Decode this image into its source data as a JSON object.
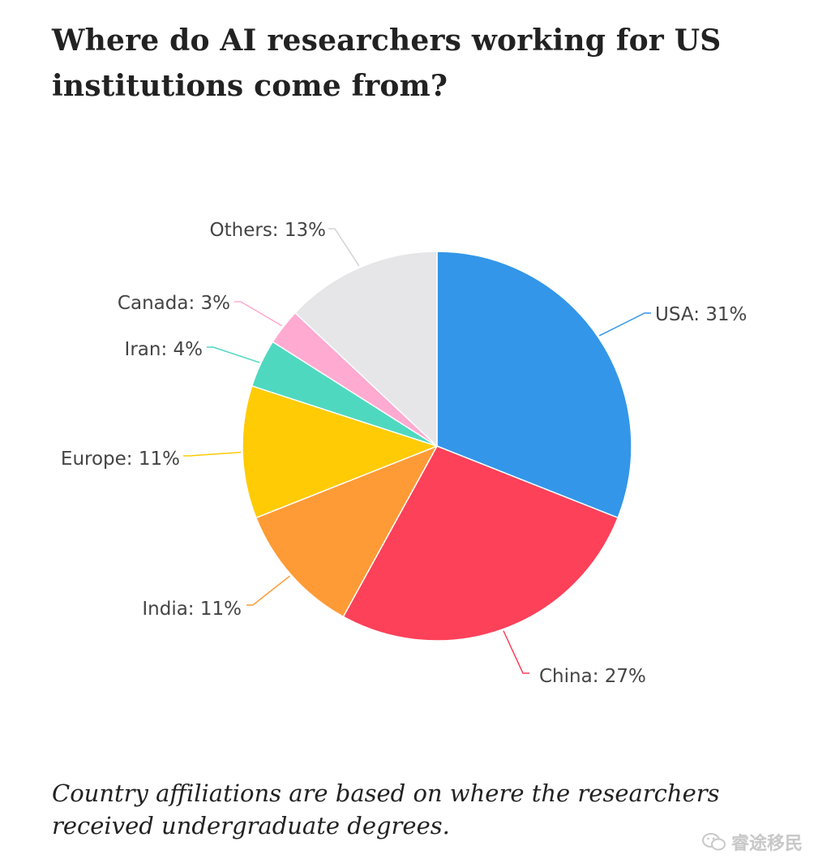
{
  "title": "Where do AI researchers working for US institutions come from?",
  "caption": "Country affiliations are based on where the researchers received undergraduate degrees.",
  "watermark": {
    "text": "睿途移民",
    "icon": "wechat-icon"
  },
  "chart_data": {
    "type": "pie",
    "slices": [
      {
        "label": "USA: 31%",
        "category": "USA",
        "value": 31,
        "color": "#3396e8"
      },
      {
        "label": "China: 27%",
        "category": "China",
        "value": 27,
        "color": "#fc4159"
      },
      {
        "label": "India: 11%",
        "category": "India",
        "value": 11,
        "color": "#ff9b36"
      },
      {
        "label": "Europe: 11%",
        "category": "Europe",
        "value": 11,
        "color": "#ffcb05"
      },
      {
        "label": "Iran: 4%",
        "category": "Iran",
        "value": 4,
        "color": "#4fd8c0"
      },
      {
        "label": "Canada: 3%",
        "category": "Canada",
        "value": 3,
        "color": "#ffaad0"
      },
      {
        "label": "Others: 13%",
        "category": "Others",
        "value": 13,
        "color": "#e6e6e8"
      }
    ],
    "start": "12 o'clock",
    "direction": "clockwise"
  }
}
